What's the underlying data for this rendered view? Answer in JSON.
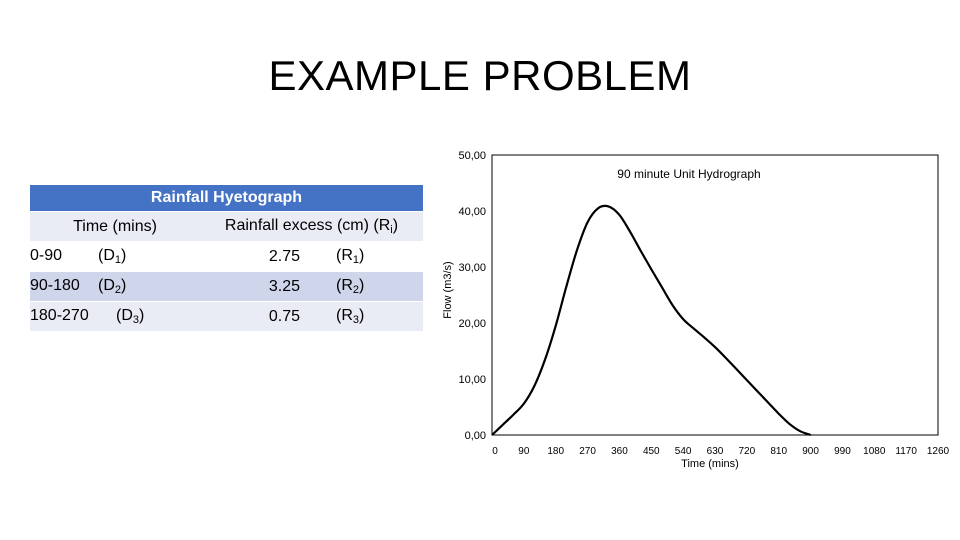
{
  "slide": {
    "title": "EXAMPLE PROBLEM"
  },
  "hyetograph": {
    "caption": "Rainfall Hyetograph",
    "columns": {
      "time": "Time (mins)",
      "rain_main": "Rainfall excess (cm) (R",
      "rain_sub": "i",
      "rain_end": ")"
    },
    "rows": [
      {
        "time": "0-90",
        "d": "(D",
        "d_sub": "1",
        "d_end": ")",
        "value": "2.75",
        "r": "(R",
        "r_sub": "1",
        "r_end": ")"
      },
      {
        "time": "90-180",
        "d": "(D",
        "d_sub": "2",
        "d_end": ")",
        "value": "3.25",
        "r": "(R",
        "r_sub": "2",
        "r_end": ")"
      },
      {
        "time": "180-270",
        "d": "(D",
        "d_sub": "3",
        "d_end": ")",
        "value": "0.75",
        "r": "(R",
        "r_sub": "3",
        "r_end": ")"
      }
    ]
  },
  "chart_data": {
    "type": "line",
    "title": "90 minute Unit Hydrograph",
    "xlabel": "Time (mins)",
    "ylabel": "Flow (m3/s)",
    "x_ticks": [
      "0",
      "90",
      "180",
      "270",
      "360",
      "450",
      "540",
      "630",
      "720",
      "810",
      "900",
      "990",
      "1080",
      "1170",
      "1260"
    ],
    "y_ticks": [
      "0,00",
      "10,00",
      "20,00",
      "30,00",
      "40,00",
      "50,00"
    ],
    "ylim": [
      0,
      50
    ],
    "xlim": [
      0,
      1260
    ],
    "grid": false,
    "series": [
      {
        "color": "#000000",
        "x": [
          0,
          30,
          60,
          90,
          120,
          150,
          180,
          210,
          240,
          270,
          300,
          330,
          360,
          390,
          420,
          450,
          480,
          510,
          540,
          570,
          600,
          630,
          660,
          690,
          720,
          750,
          780,
          810,
          840,
          870,
          900
        ],
        "y": [
          0,
          1.8,
          3.6,
          5.6,
          8.8,
          13.5,
          19.5,
          26.5,
          33.0,
          38.0,
          40.5,
          40.8,
          39.3,
          36.3,
          32.9,
          29.6,
          26.4,
          23.2,
          20.7,
          19.0,
          17.4,
          15.7,
          13.8,
          11.8,
          9.8,
          7.8,
          5.8,
          3.8,
          2.0,
          0.7,
          0.0
        ]
      }
    ]
  }
}
